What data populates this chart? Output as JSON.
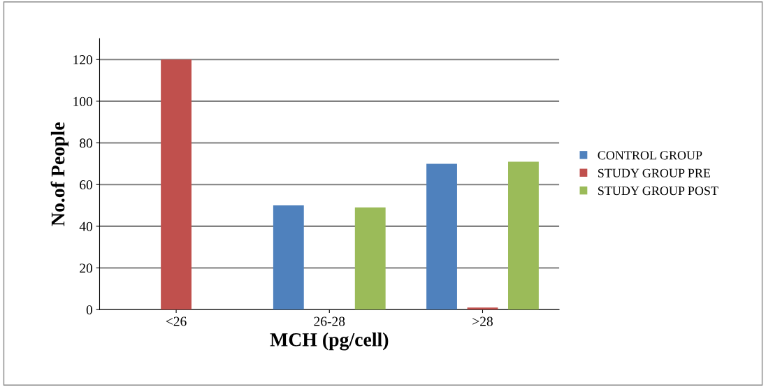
{
  "chart_data": {
    "type": "bar",
    "xlabel": "MCH (pg/cell)",
    "ylabel": "No.of People",
    "categories": [
      "<26",
      "26-28",
      ">28"
    ],
    "series": [
      {
        "name": "CONTROL GROUP",
        "color": "#4f81bd",
        "values": [
          0,
          50,
          70
        ]
      },
      {
        "name": "STUDY GROUP PRE",
        "color": "#c0504d",
        "values": [
          120,
          0,
          1
        ]
      },
      {
        "name": "STUDY GROUP POST",
        "color": "#9bbb59",
        "values": [
          0,
          49,
          71
        ]
      }
    ],
    "ylim": [
      0,
      130
    ],
    "yticks": [
      0,
      20,
      40,
      60,
      80,
      100,
      120
    ],
    "grid": "y",
    "legend": "right"
  }
}
